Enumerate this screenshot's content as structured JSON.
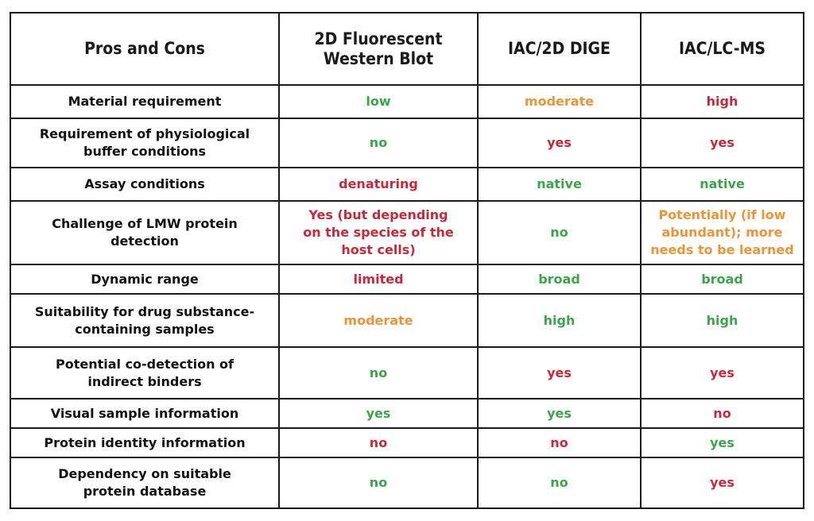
{
  "table": {
    "headers": [
      "Pros and Cons",
      "2D Fluorescent\nWestern Blot",
      "IAC/2D DIGE",
      "IAC/LC-MS"
    ],
    "rows": [
      {
        "label": "Material requirement",
        "cells": [
          {
            "text": "low",
            "color": "green"
          },
          {
            "text": "moderate",
            "color": "orange"
          },
          {
            "text": "high",
            "color": "red"
          }
        ]
      },
      {
        "label": "Requirement of physiological buffer conditions",
        "cells": [
          {
            "text": "no",
            "color": "green"
          },
          {
            "text": "yes",
            "color": "red"
          },
          {
            "text": "yes",
            "color": "red"
          }
        ]
      },
      {
        "label": "Assay conditions",
        "cells": [
          {
            "text": "denaturing",
            "color": "red"
          },
          {
            "text": "native",
            "color": "green"
          },
          {
            "text": "native",
            "color": "green"
          }
        ]
      },
      {
        "label": "Challenge of LMW protein detection",
        "cells": [
          {
            "text": "Yes (but depending on the species of the host cells)",
            "color": "red"
          },
          {
            "text": "no",
            "color": "green"
          },
          {
            "text": "Potentially (if low abundant); more needs to be learned",
            "color": "orange"
          }
        ]
      },
      {
        "label": "Dynamic range",
        "cells": [
          {
            "text": "limited",
            "color": "red"
          },
          {
            "text": "broad",
            "color": "green"
          },
          {
            "text": "broad",
            "color": "green"
          }
        ]
      },
      {
        "label": "Suitability for drug substance-containing samples",
        "cells": [
          {
            "text": "moderate",
            "color": "orange"
          },
          {
            "text": "high",
            "color": "green"
          },
          {
            "text": "high",
            "color": "green"
          }
        ]
      },
      {
        "label": "Potential co-detection of indirect binders",
        "cells": [
          {
            "text": "no",
            "color": "green"
          },
          {
            "text": "yes",
            "color": "red"
          },
          {
            "text": "yes",
            "color": "red"
          }
        ]
      },
      {
        "label": "Visual sample information",
        "cells": [
          {
            "text": "yes",
            "color": "green"
          },
          {
            "text": "yes",
            "color": "green"
          },
          {
            "text": "no",
            "color": "red"
          }
        ]
      },
      {
        "label": "Protein identity information",
        "cells": [
          {
            "text": "no",
            "color": "red"
          },
          {
            "text": "no",
            "color": "red"
          },
          {
            "text": "yes",
            "color": "green"
          }
        ]
      },
      {
        "label": "Dependency on suitable protein database",
        "cells": [
          {
            "text": "no",
            "color": "green"
          },
          {
            "text": "no",
            "color": "green"
          },
          {
            "text": "yes",
            "color": "red"
          }
        ]
      }
    ]
  },
  "colors": {
    "green": "#3aa64a",
    "orange": "#ee9436",
    "red": "#c8283a",
    "border": "#1a1a1a"
  }
}
